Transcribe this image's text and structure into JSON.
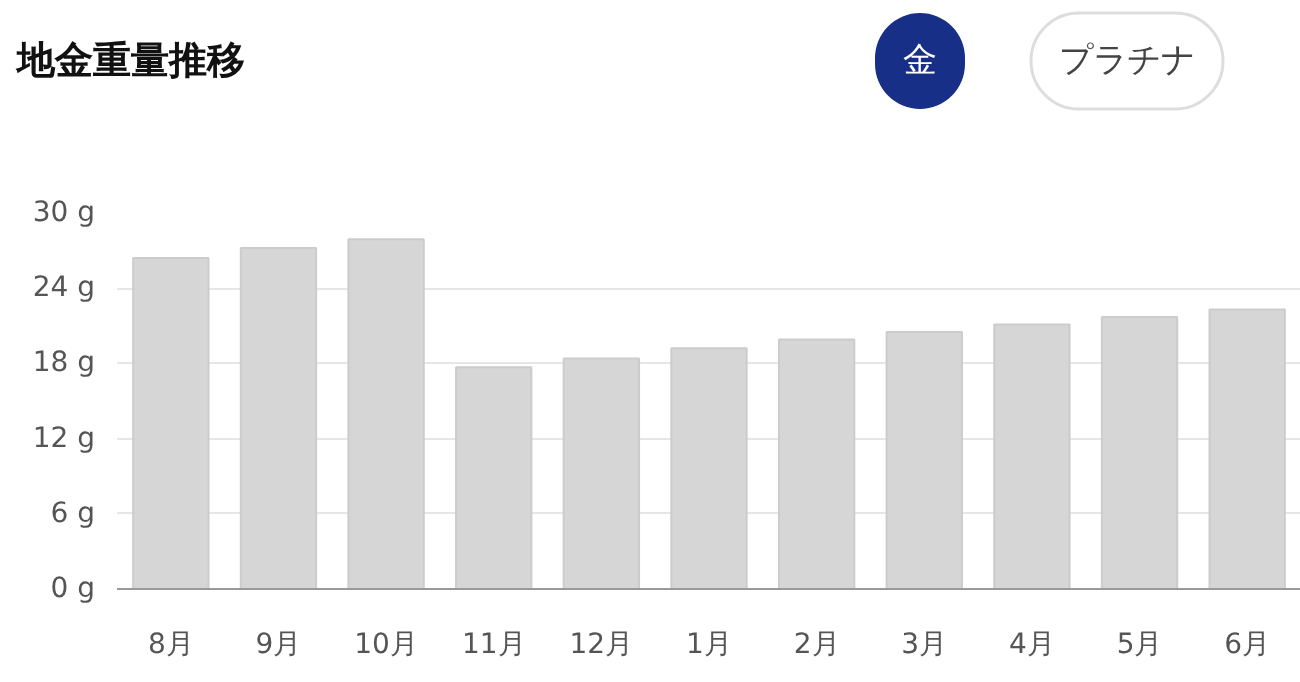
{
  "chart_data": {
    "type": "bar",
    "title": "地金重量推移",
    "annotations": [
      "金",
      "プラチナ"
    ],
    "categories": [
      "8月",
      "9月",
      "10月",
      "11月",
      "12月",
      "1月",
      "2月",
      "3月",
      "4月",
      "5月",
      "6月"
    ],
    "values": [
      26.4,
      27.2,
      27.9,
      17.7,
      18.4,
      19.2,
      19.9,
      20.5,
      21.1,
      21.7,
      22.3
    ],
    "color": "#d6d6d6",
    "ylim": [
      0,
      30
    ],
    "yticks": [
      {
        "value": 0,
        "label": "0 g"
      },
      {
        "value": 6,
        "label": "6 g"
      },
      {
        "value": 12,
        "label": "12 g"
      },
      {
        "value": 18,
        "label": "18 g"
      },
      {
        "value": 24,
        "label": "24 g"
      },
      {
        "value": 30,
        "label": "30 g"
      }
    ],
    "grid": "y"
  }
}
